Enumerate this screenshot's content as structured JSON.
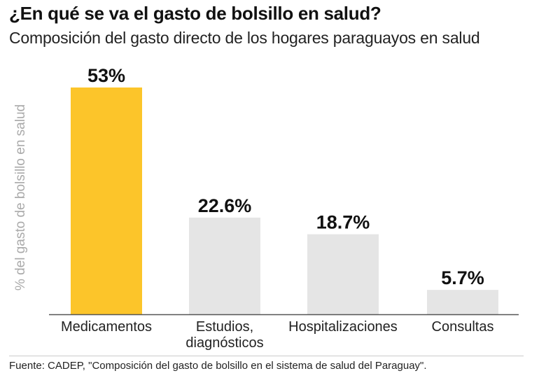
{
  "title": "¿En qué se va el gasto de bolsillo en salud?",
  "subtitle": "Composición del gasto directo de los hogares paraguayos en salud",
  "source": "Fuente: CADEP, \"Composición del gasto de bolsillo en el sistema de salud del Paraguay\".",
  "chart_data": {
    "type": "bar",
    "title": "¿En qué se va el gasto de bolsillo en salud?",
    "subtitle": "Composición del gasto directo de los hogares paraguayos en salud",
    "xlabel": "",
    "ylabel": "% del gasto de bolsillo en salud",
    "categories": [
      "Medicamentos",
      "Estudios, diagnósticos",
      "Hospitalizaciones",
      "Consultas"
    ],
    "category_lines": [
      [
        "Medicamentos"
      ],
      [
        "Estudios,",
        "diagnósticos"
      ],
      [
        "Hospitalizaciones"
      ],
      [
        "Consultas"
      ]
    ],
    "values": [
      53,
      22.6,
      18.7,
      5.7
    ],
    "data_labels": [
      "53%",
      "22.6%",
      "18.7%",
      "5.7%"
    ],
    "ylim": [
      0,
      53
    ],
    "grid": false,
    "legend": "none",
    "colors": {
      "highlight": "#FCC52A",
      "bar": "#E5E5E5",
      "axis": "#555555",
      "ylabel": "#AAAAAA"
    }
  }
}
